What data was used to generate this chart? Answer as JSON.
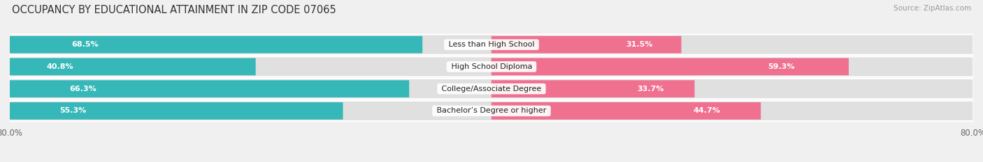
{
  "title": "OCCUPANCY BY EDUCATIONAL ATTAINMENT IN ZIP CODE 07065",
  "source": "Source: ZipAtlas.com",
  "categories": [
    "Less than High School",
    "High School Diploma",
    "College/Associate Degree",
    "Bachelor’s Degree or higher"
  ],
  "owner_pct": [
    68.5,
    40.8,
    66.3,
    55.3
  ],
  "renter_pct": [
    31.5,
    59.3,
    33.7,
    44.7
  ],
  "owner_color": "#36b8b8",
  "owner_color_light": "#a8dede",
  "renter_color": "#f07090",
  "renter_color_light": "#f5b8c8",
  "background_color": "#f0f0f0",
  "bar_bg_color": "#e0e0e0",
  "xlim": 80.0,
  "bar_height": 0.72,
  "title_fontsize": 10.5,
  "label_fontsize": 8.0,
  "pct_fontsize": 8.0,
  "tick_fontsize": 8.5,
  "source_fontsize": 7.5
}
